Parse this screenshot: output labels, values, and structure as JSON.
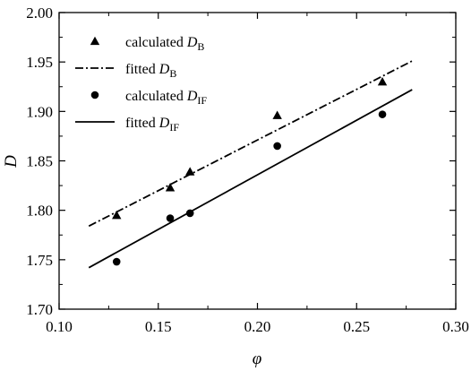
{
  "chart_data": {
    "type": "scatter",
    "xlabel": "φ",
    "ylabel": "D",
    "xlim": [
      0.1,
      0.3
    ],
    "ylim": [
      1.7,
      2.0
    ],
    "x_ticks": [
      "0.10",
      "0.15",
      "0.20",
      "0.25",
      "0.30"
    ],
    "y_ticks": [
      "1.70",
      "1.75",
      "1.80",
      "1.85",
      "1.90",
      "1.95",
      "2.00"
    ],
    "grid": false,
    "legend_position": "top-left",
    "series": [
      {
        "name": "calculated D_B",
        "label_text": "calculated ",
        "label_var": "D",
        "label_sub": "B",
        "kind": "points",
        "marker": "triangle",
        "x": [
          0.129,
          0.156,
          0.166,
          0.21,
          0.263
        ],
        "y": [
          1.795,
          1.823,
          1.839,
          1.896,
          1.93
        ]
      },
      {
        "name": "fitted D_B",
        "label_text": "fitted ",
        "label_var": "D",
        "label_sub": "B",
        "kind": "line",
        "style": "dash-dot",
        "x": [
          0.115,
          0.278
        ],
        "y": [
          1.784,
          1.951
        ]
      },
      {
        "name": "calculated D_IF",
        "label_text": "calculated ",
        "label_var": "D",
        "label_sub": "IF",
        "kind": "points",
        "marker": "circle",
        "x": [
          0.129,
          0.156,
          0.166,
          0.21,
          0.263
        ],
        "y": [
          1.748,
          1.792,
          1.797,
          1.865,
          1.897
        ]
      },
      {
        "name": "fitted D_IF",
        "label_text": "fitted ",
        "label_var": "D",
        "label_sub": "IF",
        "kind": "line",
        "style": "solid",
        "x": [
          0.115,
          0.278
        ],
        "y": [
          1.742,
          1.922
        ]
      }
    ]
  }
}
